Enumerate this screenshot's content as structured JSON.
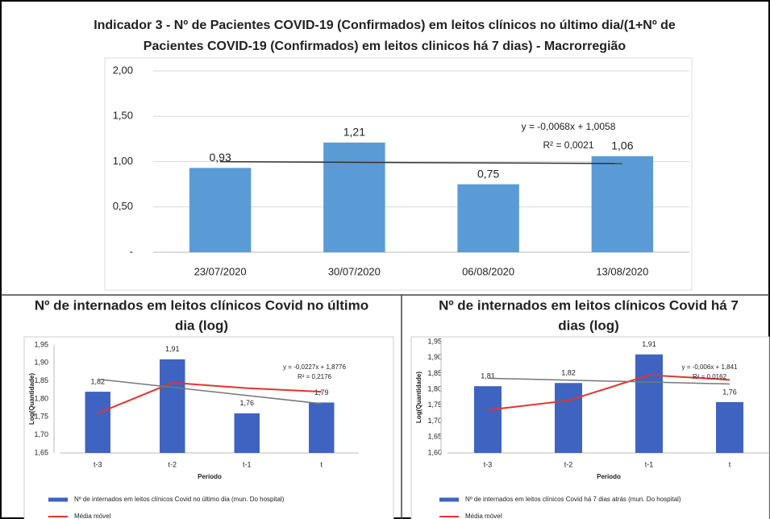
{
  "chart_data": [
    {
      "type": "bar",
      "title": [
        "Indicador 3 - Nº de Pacientes COVID-19 (Confirmados) em leitos clínicos no último dia/(1+Nº de",
        "Pacientes COVID-19 (Confirmados) em leitos clinicos há 7 dias) - Macrorregião"
      ],
      "categories": [
        "23/07/2020",
        "30/07/2020",
        "06/08/2020",
        "13/08/2020"
      ],
      "values": [
        0.93,
        1.21,
        0.75,
        1.06
      ],
      "value_labels": [
        "0,93",
        "1,21",
        "0,75",
        "1,06"
      ],
      "color": "#5b9bd5",
      "ylim": [
        0,
        2
      ],
      "yticks": [
        {
          "value": 0,
          "label": "-"
        },
        {
          "value": 0.5,
          "label": "0,50"
        },
        {
          "value": 1,
          "label": "1,00"
        },
        {
          "value": 1.5,
          "label": "1,50"
        },
        {
          "value": 2,
          "label": "2,00"
        }
      ],
      "grid": true,
      "trendline": {
        "slope": -0.0068,
        "intercept": 1.0058
      },
      "annotations": [
        "y = -0,0068x + 1,0058",
        "R² = 0,0021"
      ]
    },
    {
      "type": "bar_line",
      "title": [
        "Nº de internados em leitos clínicos Covid no último",
        "dia (log)"
      ],
      "ylabel": "Log(Quantidade)",
      "xlabel": "Período",
      "categories": [
        "t-3",
        "t-2",
        "t-1",
        "t"
      ],
      "series": [
        {
          "name": "Nº de internados em leitos clínicos Covid no último dia (mun. Do hospital)",
          "color": "#3f63c0",
          "type": "bar",
          "values": [
            1.82,
            1.91,
            1.76,
            1.79
          ],
          "value_labels": [
            "1,82",
            "1,91",
            "1,76",
            "1,79"
          ]
        },
        {
          "name": "Média móvel",
          "color": "#e8312f",
          "type": "line",
          "values": [
            1.76,
            1.845,
            1.83,
            1.82
          ]
        }
      ],
      "ylim": [
        1.65,
        1.95
      ],
      "yticks": [
        {
          "value": 1.65,
          "label": "1,65"
        },
        {
          "value": 1.7,
          "label": "1,70"
        },
        {
          "value": 1.75,
          "label": "1,75"
        },
        {
          "value": 1.8,
          "label": "1,80"
        },
        {
          "value": 1.85,
          "label": "1,85"
        },
        {
          "value": 1.9,
          "label": "1,90"
        },
        {
          "value": 1.95,
          "label": "1,95"
        }
      ],
      "trendline": {
        "slope": -0.0227,
        "intercept": 1.8776
      },
      "annotations": [
        "y = -0,0227x + 1,8776",
        "R² = 0,2176"
      ]
    },
    {
      "type": "bar_line",
      "title": [
        "Nº de internados em leitos clínicos Covid há 7",
        "dias (log)"
      ],
      "ylabel": "Log(Quantidade)",
      "xlabel": "Período",
      "categories": [
        "t-3",
        "t-2",
        "t-1",
        "t"
      ],
      "series": [
        {
          "name": "Nº de internados em leitos clínicos Covid há 7 dias atrás (mun. Do hospital)",
          "color": "#3f63c0",
          "type": "bar",
          "values": [
            1.81,
            1.82,
            1.91,
            1.76
          ],
          "value_labels": [
            "1,81",
            "1,82",
            "1,91",
            "1,76"
          ]
        },
        {
          "name": "Média móvel",
          "color": "#e8312f",
          "type": "line",
          "values": [
            1.735,
            1.765,
            1.845,
            1.83
          ]
        }
      ],
      "ylim": [
        1.6,
        1.95
      ],
      "yticks": [
        {
          "value": 1.6,
          "label": "1,60"
        },
        {
          "value": 1.65,
          "label": "1,65"
        },
        {
          "value": 1.7,
          "label": "1,70"
        },
        {
          "value": 1.75,
          "label": "1,75"
        },
        {
          "value": 1.8,
          "label": "1,80"
        },
        {
          "value": 1.85,
          "label": "1,85"
        },
        {
          "value": 1.9,
          "label": "1,90"
        },
        {
          "value": 1.95,
          "label": "1,95"
        }
      ],
      "trendline": {
        "slope": -0.006,
        "intercept": 1.841
      },
      "annotations": [
        "y = -0,006x + 1,841",
        "R² = 0,0162"
      ]
    }
  ]
}
